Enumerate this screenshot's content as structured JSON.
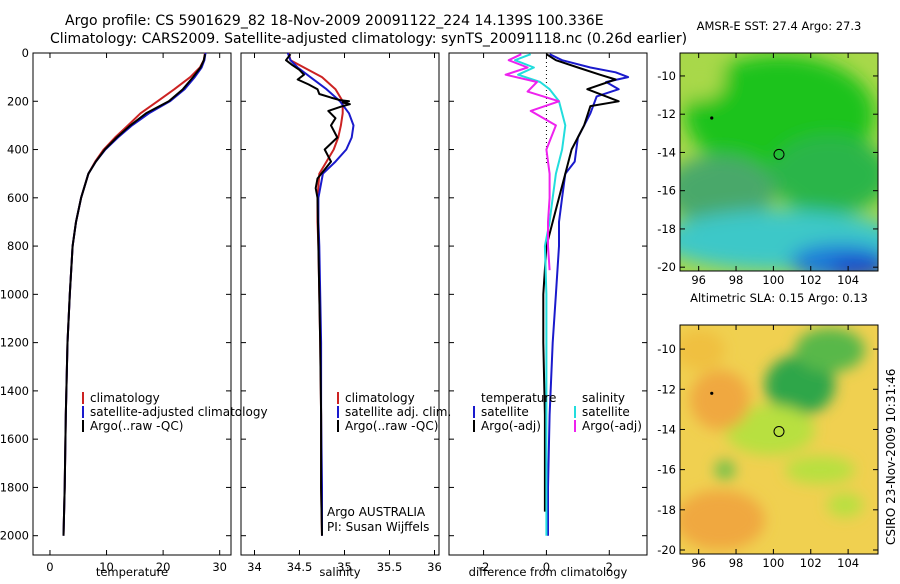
{
  "header": {
    "line1": "Argo profile: CS 5901629_82 18-Nov-2009 20091122_224 14.139S 100.336E",
    "line2": "Climatology: CARS2009. Satellite-adjusted climatology: synTS_20091118.nc (0.26d earlier)"
  },
  "side_label": "CSIRO 23-Nov-2009 10:31:46",
  "colors": {
    "climatology": "#cc2222",
    "satellite": "#1a1acc",
    "argo": "#000000",
    "sat_salinity": "#22dddd",
    "argo_salinity_adj": "#ee22ee"
  },
  "chart_data": [
    {
      "type": "line",
      "id": "temperature",
      "xlabel": "temperature",
      "ylabel": "",
      "xlim": [
        -3,
        32
      ],
      "ylim": [
        2080,
        0
      ],
      "xticks": [
        0,
        10,
        20,
        30
      ],
      "yticks": [
        0,
        200,
        400,
        600,
        800,
        1000,
        1200,
        1400,
        1600,
        1800,
        2000
      ],
      "legend": [
        "climatology",
        "satellite-adjusted climatology",
        "Argo(..raw -QC)"
      ],
      "series": [
        {
          "name": "climatology",
          "color": "#cc2222",
          "x": [
            27.4,
            27.2,
            26.5,
            24.8,
            22.0,
            19.0,
            16.0,
            13.8,
            11.5,
            9.5,
            8.0,
            6.8,
            5.5,
            4.6,
            4.0,
            3.5,
            3.1,
            2.8,
            2.6,
            2.4
          ],
          "y": [
            0,
            30,
            60,
            100,
            150,
            200,
            250,
            300,
            350,
            400,
            450,
            500,
            600,
            700,
            800,
            1000,
            1200,
            1500,
            1800,
            2000
          ]
        },
        {
          "name": "satellite-adjusted climatology",
          "color": "#1a1acc",
          "x": [
            27.5,
            27.3,
            26.8,
            25.6,
            23.8,
            21.2,
            17.5,
            14.5,
            12.0,
            9.8,
            8.1,
            6.8,
            5.5,
            4.6,
            4.0,
            3.5,
            3.1,
            2.8,
            2.6,
            2.4
          ],
          "y": [
            0,
            30,
            60,
            100,
            150,
            200,
            250,
            300,
            350,
            400,
            450,
            500,
            600,
            700,
            800,
            1000,
            1200,
            1500,
            1800,
            2000
          ]
        },
        {
          "name": "Argo(..raw -QC)",
          "color": "#000000",
          "x": [
            27.4,
            27.2,
            26.6,
            25.3,
            23.5,
            21.0,
            17.0,
            14.2,
            11.8,
            9.7,
            8.1,
            6.8,
            5.5,
            4.6,
            4.0,
            3.5,
            3.1,
            2.8,
            2.6,
            2.4
          ],
          "y": [
            5,
            30,
            60,
            100,
            150,
            200,
            250,
            300,
            350,
            400,
            450,
            500,
            600,
            700,
            800,
            1000,
            1200,
            1500,
            1800,
            2000
          ]
        }
      ]
    },
    {
      "type": "line",
      "id": "salinity",
      "xlabel": "salinity",
      "ylabel": "",
      "xlim": [
        33.85,
        36.05
      ],
      "ylim": [
        2080,
        0
      ],
      "xticks": [
        34,
        34.5,
        35,
        35.5,
        36
      ],
      "legend": [
        "climatology",
        "satellite adj. clim.",
        "Argo(..raw -QC)"
      ],
      "annotation": [
        "Argo AUSTRALIA",
        "PI: Susan Wijffels"
      ],
      "series": [
        {
          "name": "climatology",
          "color": "#cc2222",
          "x": [
            34.38,
            34.4,
            34.55,
            34.75,
            34.9,
            34.98,
            34.98,
            34.96,
            34.93,
            34.88,
            34.8,
            34.72,
            34.7,
            34.7,
            34.71,
            34.72,
            34.73,
            34.74,
            34.74,
            34.75
          ],
          "y": [
            0,
            30,
            60,
            100,
            150,
            200,
            250,
            300,
            350,
            400,
            450,
            500,
            600,
            700,
            800,
            1000,
            1200,
            1500,
            1800,
            2000
          ]
        },
        {
          "name": "satellite adj. clim.",
          "color": "#1a1acc",
          "x": [
            34.37,
            34.4,
            34.48,
            34.62,
            34.8,
            34.95,
            35.05,
            35.1,
            35.08,
            35.02,
            34.9,
            34.76,
            34.71,
            34.71,
            34.72,
            34.73,
            34.74,
            34.74,
            34.75,
            34.75
          ],
          "y": [
            0,
            30,
            60,
            100,
            150,
            200,
            250,
            300,
            350,
            400,
            450,
            500,
            600,
            700,
            800,
            1000,
            1200,
            1500,
            1800,
            2000
          ]
        },
        {
          "name": "Argo(..raw -QC)",
          "color": "#000000",
          "x": [
            34.4,
            34.35,
            34.42,
            34.5,
            34.55,
            34.48,
            34.6,
            34.7,
            34.72,
            34.85,
            34.95,
            35.05,
            34.98,
            35.06,
            34.98,
            34.82,
            34.9,
            34.85,
            34.92,
            34.78,
            34.85,
            34.7,
            34.68,
            34.7,
            34.71,
            34.72,
            34.73,
            34.74,
            34.74,
            34.75
          ],
          "y": [
            5,
            30,
            50,
            70,
            90,
            110,
            130,
            150,
            170,
            185,
            195,
            200,
            205,
            212,
            220,
            240,
            270,
            300,
            350,
            400,
            450,
            520,
            560,
            600,
            800,
            1000,
            1200,
            1500,
            1800,
            2000
          ]
        }
      ]
    },
    {
      "type": "line",
      "id": "difference",
      "xlabel": "difference from climatology",
      "ylabel": "",
      "xlim": [
        -3.1,
        3.2
      ],
      "ylim": [
        2080,
        0
      ],
      "xticks": [
        -2,
        0,
        2
      ],
      "legend_left_title": "temperature",
      "legend_right_title": "salinity",
      "legend": [
        "satellite",
        "Argo(-adj)",
        "satellite",
        "Argo(-adj)"
      ],
      "series": [
        {
          "name": "satellite",
          "color": "#1a1acc",
          "x": [
            0.1,
            0.5,
            1.4,
            2.2,
            2.6,
            1.9,
            2.3,
            1.6,
            1.4,
            1.0,
            0.9,
            0.6,
            0.5,
            0.4,
            0.4,
            0.3,
            0.2,
            0.1,
            0.05,
            0.05
          ],
          "y": [
            5,
            30,
            60,
            80,
            100,
            120,
            150,
            180,
            250,
            350,
            450,
            500,
            600,
            700,
            800,
            1000,
            1200,
            1500,
            1800,
            2000
          ]
        },
        {
          "name": "Argo(-adj)",
          "color": "#000000",
          "x": [
            0.0,
            0.3,
            1.0,
            1.7,
            2.2,
            1.3,
            1.9,
            2.3,
            1.4,
            1.2,
            0.8,
            0.6,
            0.4,
            0.2,
            0.0,
            -0.1,
            -0.1,
            -0.05,
            -0.05,
            -0.05
          ],
          "y": [
            5,
            30,
            60,
            90,
            110,
            150,
            180,
            200,
            220,
            300,
            400,
            500,
            600,
            700,
            800,
            1000,
            1200,
            1500,
            1800,
            1900
          ]
        },
        {
          "name": "satellite",
          "color": "#22dddd",
          "x": [
            -0.5,
            -1.0,
            -0.4,
            -0.9,
            -0.2,
            0.1,
            0.4,
            0.6,
            0.5,
            0.3,
            0.2,
            0.1,
            -0.05,
            0.0,
            0.0,
            0.0,
            0.0,
            0.0
          ],
          "y": [
            5,
            30,
            60,
            90,
            120,
            150,
            200,
            300,
            400,
            500,
            600,
            700,
            800,
            1000,
            1200,
            1500,
            1800,
            2000
          ]
        },
        {
          "name": "Argo(-adj)",
          "color": "#ee22ee",
          "x": [
            -0.8,
            -1.2,
            -0.6,
            -1.3,
            -0.3,
            -0.6,
            0.4,
            -0.5,
            0.3,
            0.0,
            0.1,
            0.1,
            0.05,
            0.05,
            0.1
          ],
          "y": [
            5,
            30,
            60,
            90,
            120,
            160,
            200,
            240,
            300,
            400,
            500,
            600,
            700,
            800,
            900
          ]
        }
      ]
    },
    {
      "type": "heatmap",
      "id": "sst-map",
      "title": "AMSR-E SST: 27.4 Argo: 27.3",
      "xlim": [
        95,
        105.6
      ],
      "ylim": [
        -20.2,
        -8.8
      ],
      "xticks": [
        96,
        98,
        100,
        102,
        104
      ],
      "yticks": [
        -10,
        -12,
        -14,
        -16,
        -18,
        -20
      ],
      "markers": [
        {
          "x": 96.7,
          "y": -12.2,
          "kind": "dot"
        },
        {
          "x": 100.3,
          "y": -14.1,
          "kind": "circle"
        }
      ]
    },
    {
      "type": "heatmap",
      "id": "sla-map",
      "title": "Altimetric SLA: 0.15 Argo: 0.13",
      "xlim": [
        95,
        105.6
      ],
      "ylim": [
        -20.2,
        -8.8
      ],
      "xticks": [
        96,
        98,
        100,
        102,
        104
      ],
      "yticks": [
        -10,
        -12,
        -14,
        -16,
        -18,
        -20
      ],
      "markers": [
        {
          "x": 96.7,
          "y": -12.2,
          "kind": "dot"
        },
        {
          "x": 100.3,
          "y": -14.1,
          "kind": "circle"
        }
      ]
    }
  ]
}
